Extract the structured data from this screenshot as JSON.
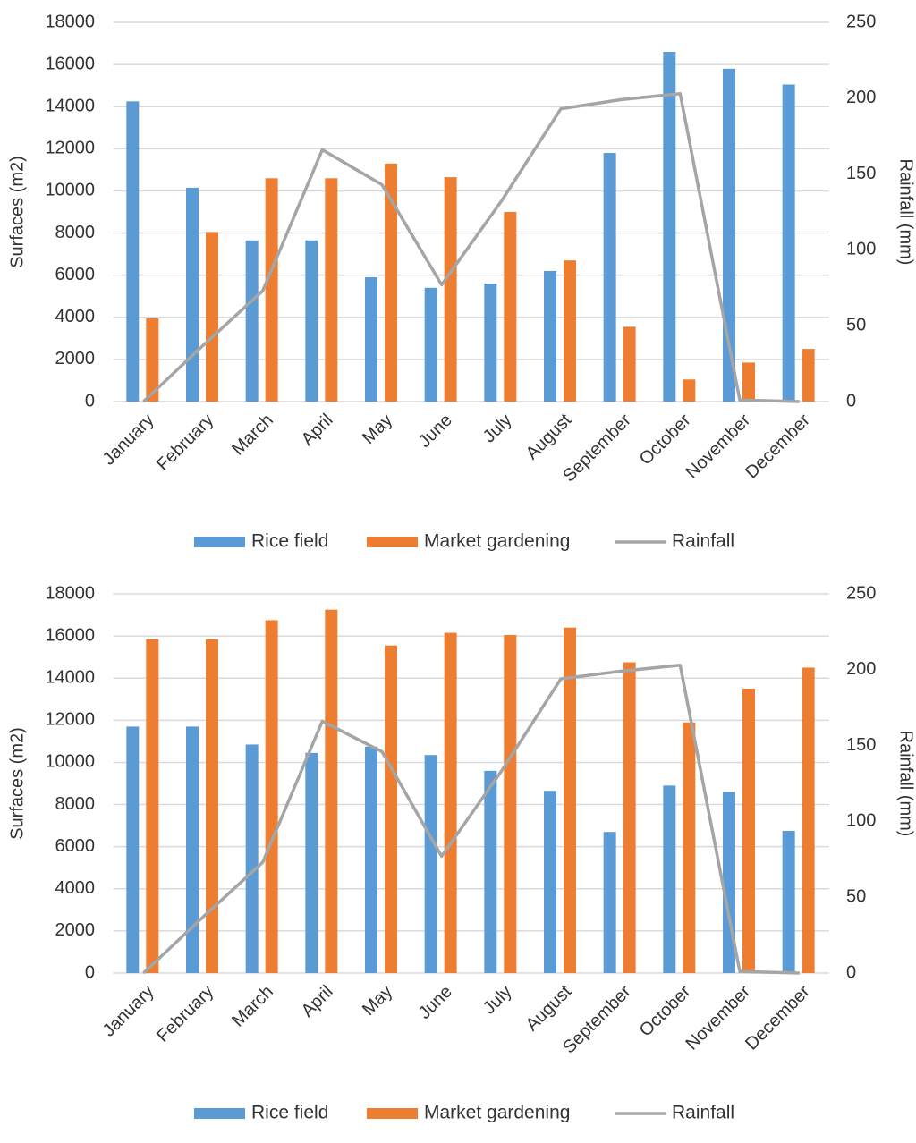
{
  "colors": {
    "rice": "#5B9BD5",
    "market": "#ED7D31",
    "rainfall": "#A5A5A5",
    "grid": "#D9D9D9"
  },
  "chart_data": [
    {
      "type": "bar",
      "categories": [
        "January",
        "February",
        "March",
        "April",
        "May",
        "June",
        "July",
        "August",
        "September",
        "October",
        "November",
        "December"
      ],
      "series": [
        {
          "name": "Rice field",
          "type": "bar",
          "axis": "left",
          "values": [
            14250,
            10150,
            7650,
            7650,
            5900,
            5400,
            5600,
            6200,
            11800,
            16600,
            15800,
            15050
          ]
        },
        {
          "name": "Market gardening",
          "type": "bar",
          "axis": "left",
          "values": [
            3950,
            8050,
            10600,
            10600,
            11300,
            10650,
            9000,
            6700,
            3550,
            1050,
            1850,
            2500
          ]
        },
        {
          "name": "Rainfall",
          "type": "line",
          "axis": "right",
          "values": [
            0,
            37,
            73,
            166,
            143,
            77,
            132,
            193,
            199,
            203,
            1,
            0
          ]
        }
      ],
      "ylabel": "Surfaces (m2)",
      "y2label": "Rainfall (mm)",
      "ylim": [
        0,
        18000
      ],
      "y2lim": [
        0,
        250
      ],
      "yticks": [
        "0",
        "2000",
        "4000",
        "6000",
        "8000",
        "10000",
        "12000",
        "14000",
        "16000",
        "18000"
      ],
      "y2ticks": [
        "0",
        "50",
        "100",
        "150",
        "200",
        "250"
      ],
      "grid": true,
      "legend_position": "bottom"
    },
    {
      "type": "bar",
      "categories": [
        "January",
        "February",
        "March",
        "April",
        "May",
        "June",
        "July",
        "August",
        "September",
        "October",
        "November",
        "December"
      ],
      "series": [
        {
          "name": "Rice field",
          "type": "bar",
          "axis": "left",
          "values": [
            11700,
            11700,
            10850,
            10450,
            10750,
            10350,
            9600,
            8650,
            6700,
            8900,
            8600,
            6750
          ]
        },
        {
          "name": "Market gardening",
          "type": "bar",
          "axis": "left",
          "values": [
            15850,
            15850,
            16750,
            17250,
            15550,
            16150,
            16050,
            16400,
            14750,
            11900,
            13500,
            14500
          ]
        },
        {
          "name": "Rainfall",
          "type": "line",
          "axis": "right",
          "values": [
            0,
            37,
            73,
            166,
            146,
            77,
            133,
            194,
            199,
            203,
            1,
            0
          ]
        }
      ],
      "ylabel": "Surfaces (m2)",
      "y2label": "Rainfall (mm)",
      "ylim": [
        0,
        18000
      ],
      "y2lim": [
        0,
        250
      ],
      "yticks": [
        "0",
        "2000",
        "4000",
        "6000",
        "8000",
        "10000",
        "12000",
        "14000",
        "16000",
        "18000"
      ],
      "y2ticks": [
        "0",
        "50",
        "100",
        "150",
        "200",
        "250"
      ],
      "grid": true,
      "legend_position": "bottom"
    }
  ]
}
